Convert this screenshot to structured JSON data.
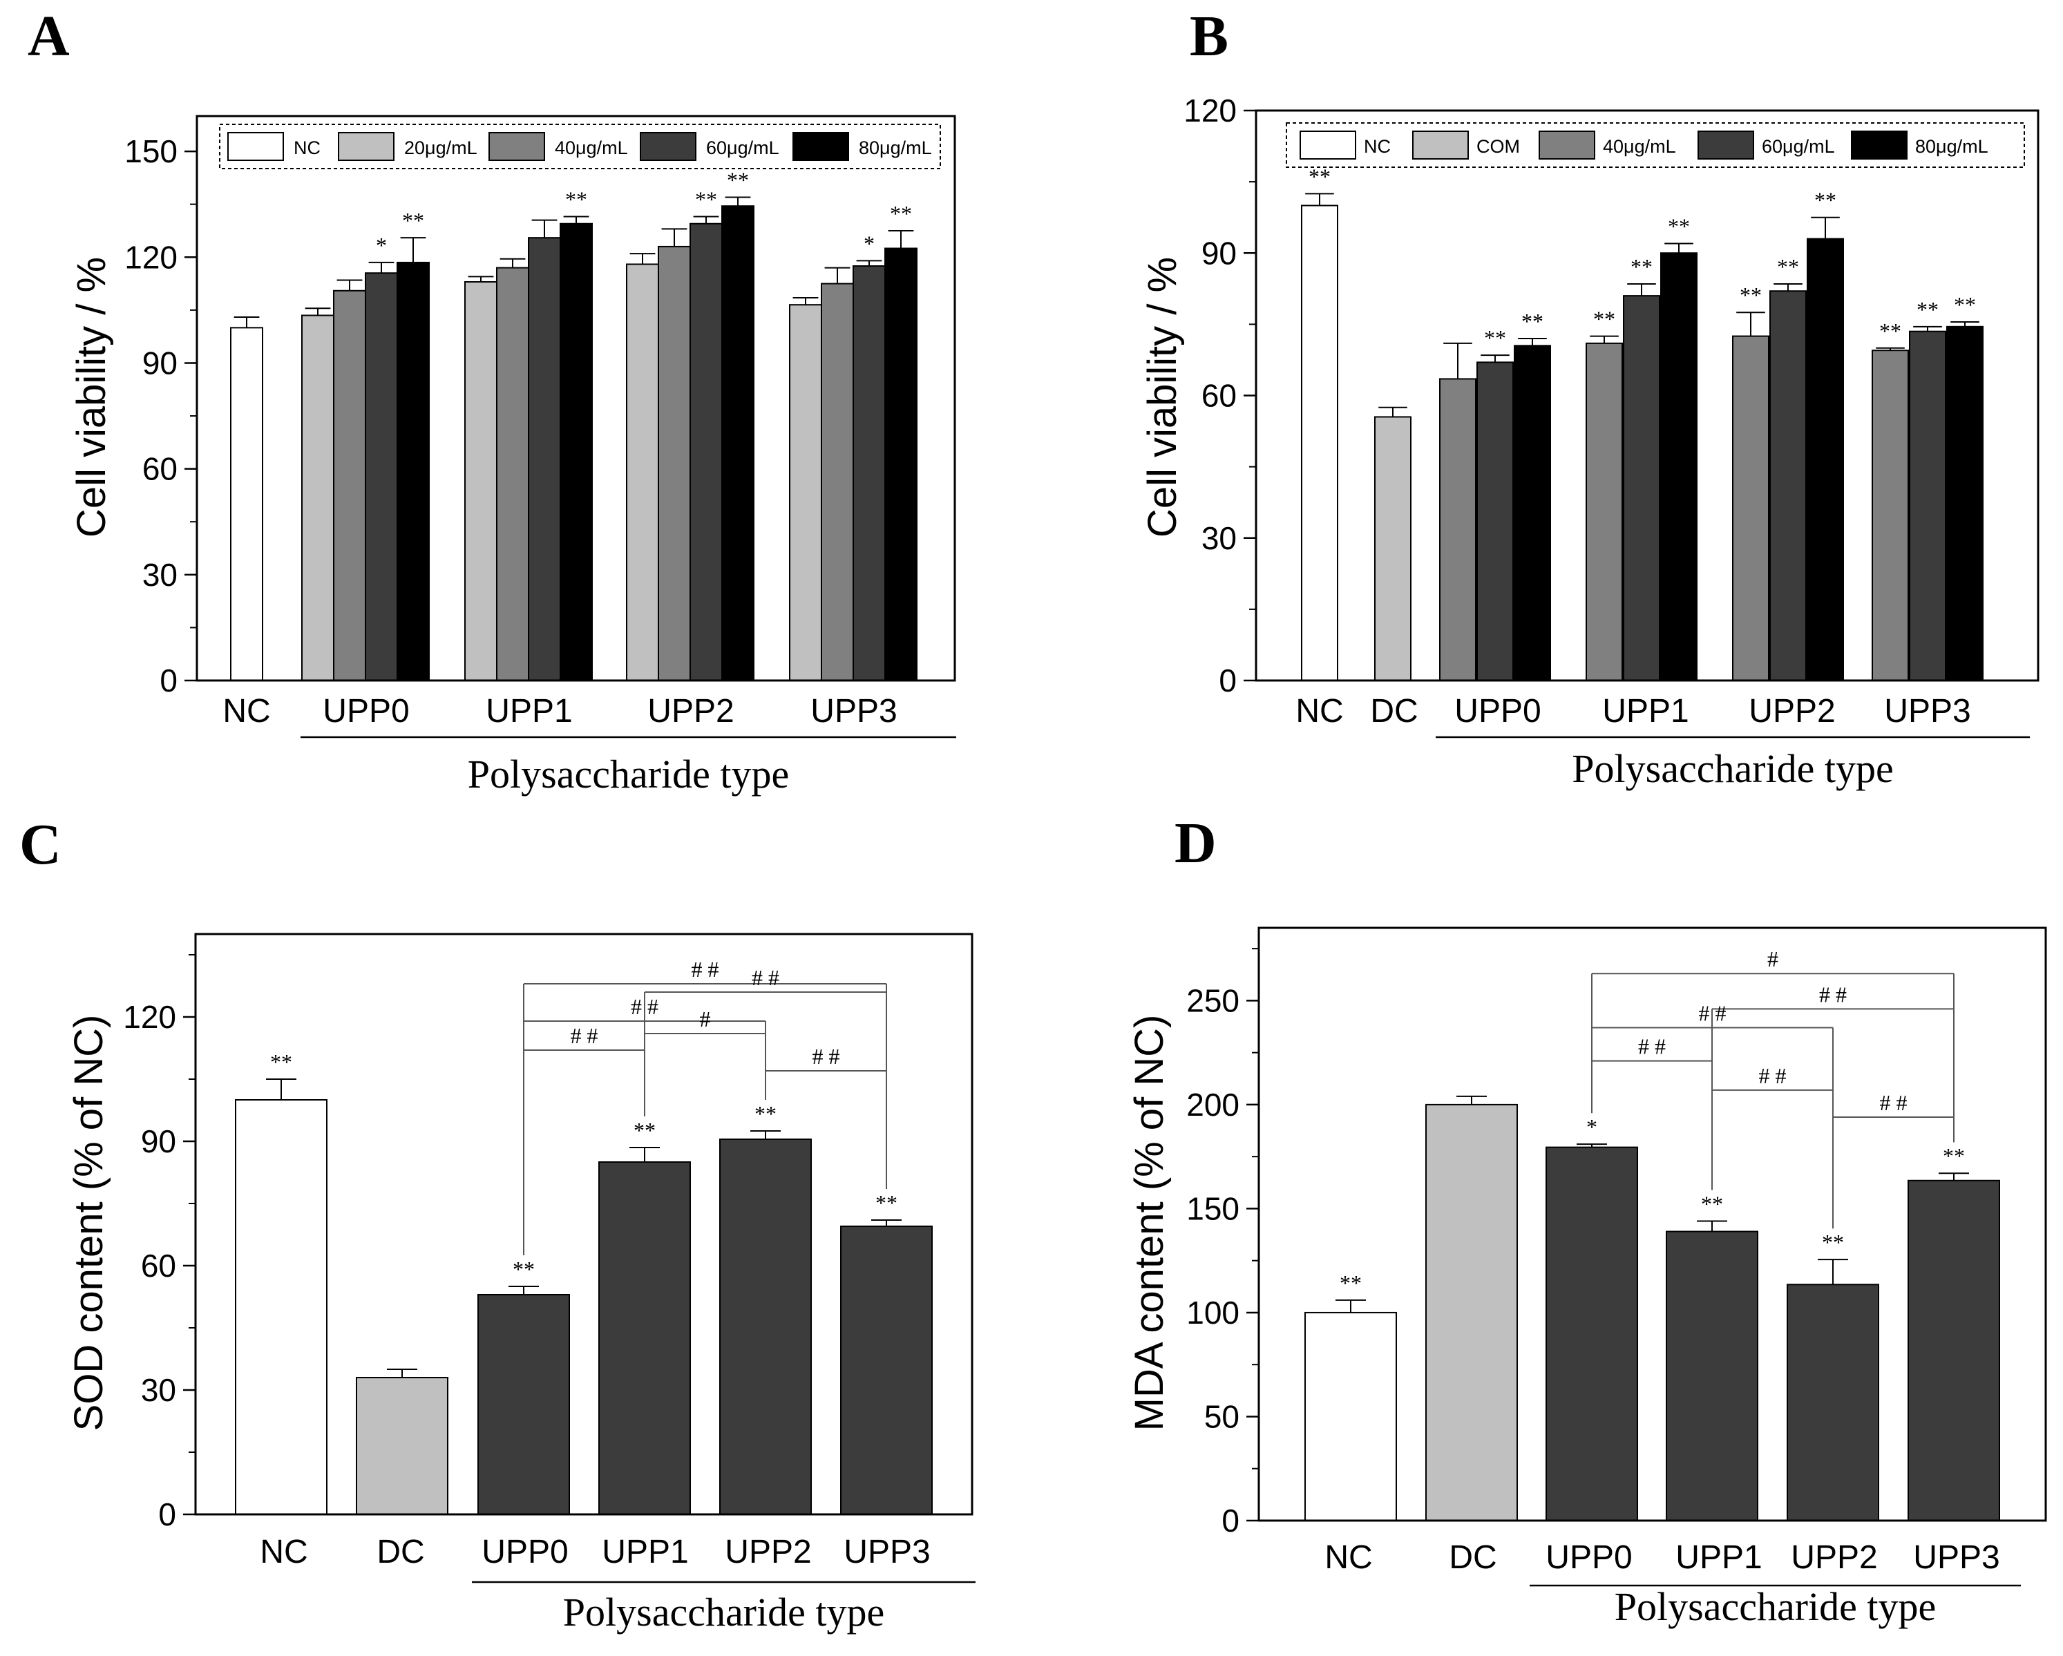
{
  "colors": {
    "white": "#ffffff",
    "light_gray": "#c0c0c0",
    "mid_gray": "#808080",
    "dark_gray": "#3c3c3c",
    "black": "#000000"
  },
  "chart_data": [
    {
      "panel": "A",
      "type": "bar",
      "xlabel": "Polysaccharide type",
      "ylabel": "Cell viability / %",
      "ylim": [
        0,
        160
      ],
      "yticks": [
        0,
        30,
        60,
        90,
        120,
        150
      ],
      "categories": [
        "NC",
        "UPP0",
        "UPP1",
        "UPP2",
        "UPP3"
      ],
      "legend": [
        "NC",
        "20μg/mL",
        "40μg/mL",
        "60μg/mL",
        "80μg/mL"
      ],
      "legend_placement": "top",
      "grid": false,
      "bars": [
        {
          "category": "NC",
          "series": "NC",
          "value": 100,
          "err": 3,
          "sig": ""
        },
        {
          "category": "UPP0",
          "series": "20μg/mL",
          "value": 103.5,
          "err": 2,
          "sig": ""
        },
        {
          "category": "UPP0",
          "series": "40μg/mL",
          "value": 110.5,
          "err": 3,
          "sig": ""
        },
        {
          "category": "UPP0",
          "series": "60μg/mL",
          "value": 115.5,
          "err": 3,
          "sig": "*"
        },
        {
          "category": "UPP0",
          "series": "80μg/mL",
          "value": 118.5,
          "err": 7,
          "sig": "**"
        },
        {
          "category": "UPP1",
          "series": "20μg/mL",
          "value": 113,
          "err": 1.5,
          "sig": ""
        },
        {
          "category": "UPP1",
          "series": "40μg/mL",
          "value": 117,
          "err": 2.5,
          "sig": ""
        },
        {
          "category": "UPP1",
          "series": "60μg/mL",
          "value": 125.5,
          "err": 5,
          "sig": ""
        },
        {
          "category": "UPP1",
          "series": "80μg/mL",
          "value": 129.5,
          "err": 2,
          "sig": "**"
        },
        {
          "category": "UPP2",
          "series": "20μg/mL",
          "value": 118,
          "err": 3,
          "sig": ""
        },
        {
          "category": "UPP2",
          "series": "40μg/mL",
          "value": 123,
          "err": 5,
          "sig": ""
        },
        {
          "category": "UPP2",
          "series": "60μg/mL",
          "value": 129.5,
          "err": 2,
          "sig": "**"
        },
        {
          "category": "UPP2",
          "series": "80μg/mL",
          "value": 134.5,
          "err": 2.5,
          "sig": "**"
        },
        {
          "category": "UPP3",
          "series": "20μg/mL",
          "value": 106.5,
          "err": 2,
          "sig": ""
        },
        {
          "category": "UPP3",
          "series": "40μg/mL",
          "value": 112.5,
          "err": 4.5,
          "sig": ""
        },
        {
          "category": "UPP3",
          "series": "60μg/mL",
          "value": 117.5,
          "err": 1.5,
          "sig": "*"
        },
        {
          "category": "UPP3",
          "series": "80μg/mL",
          "value": 122.5,
          "err": 5,
          "sig": "**"
        }
      ],
      "comparisons": []
    },
    {
      "panel": "B",
      "type": "bar",
      "xlabel": "Polysaccharide type",
      "ylabel": "Cell viability / %",
      "ylim": [
        0,
        120
      ],
      "yticks": [
        0,
        30,
        60,
        90,
        120
      ],
      "categories": [
        "NC",
        "DC",
        "UPP0",
        "UPP1",
        "UPP2",
        "UPP3"
      ],
      "legend": [
        "NC",
        "COM",
        "40μg/mL",
        "60μg/mL",
        "80μg/mL"
      ],
      "legend_placement": "top",
      "grid": false,
      "bars": [
        {
          "category": "NC",
          "series": "NC",
          "value": 100,
          "err": 2.5,
          "sig": "**"
        },
        {
          "category": "DC",
          "series": "COM",
          "value": 55.5,
          "err": 2,
          "sig": ""
        },
        {
          "category": "UPP0",
          "series": "40μg/mL",
          "value": 63.5,
          "err": 7.5,
          "sig": ""
        },
        {
          "category": "UPP0",
          "series": "60μg/mL",
          "value": 67,
          "err": 1.5,
          "sig": "**"
        },
        {
          "category": "UPP0",
          "series": "80μg/mL",
          "value": 70.5,
          "err": 1.5,
          "sig": "**"
        },
        {
          "category": "UPP1",
          "series": "40μg/mL",
          "value": 71,
          "err": 1.5,
          "sig": "**"
        },
        {
          "category": "UPP1",
          "series": "60μg/mL",
          "value": 81,
          "err": 2.5,
          "sig": "**"
        },
        {
          "category": "UPP1",
          "series": "80μg/mL",
          "value": 90,
          "err": 2,
          "sig": "**"
        },
        {
          "category": "UPP2",
          "series": "40μg/mL",
          "value": 72.5,
          "err": 5,
          "sig": "**"
        },
        {
          "category": "UPP2",
          "series": "60μg/mL",
          "value": 82,
          "err": 1.5,
          "sig": "**"
        },
        {
          "category": "UPP2",
          "series": "80μg/mL",
          "value": 93,
          "err": 4.5,
          "sig": "**"
        },
        {
          "category": "UPP3",
          "series": "40μg/mL",
          "value": 69.5,
          "err": 0.5,
          "sig": "**"
        },
        {
          "category": "UPP3",
          "series": "60μg/mL",
          "value": 73.5,
          "err": 1,
          "sig": "**"
        },
        {
          "category": "UPP3",
          "series": "80μg/mL",
          "value": 74.5,
          "err": 1,
          "sig": "**"
        }
      ],
      "comparisons": []
    },
    {
      "panel": "C",
      "type": "bar",
      "xlabel": "Polysaccharide type",
      "ylabel": "SOD content (% of NC)",
      "ylim": [
        0,
        140
      ],
      "yticks": [
        0,
        30,
        60,
        90,
        120
      ],
      "categories": [
        "NC",
        "DC",
        "UPP0",
        "UPP1",
        "UPP2",
        "UPP3"
      ],
      "grid": false,
      "bars": [
        {
          "category": "NC",
          "series": "NC",
          "value": 100,
          "err": 5,
          "sig": "**"
        },
        {
          "category": "DC",
          "series": "DC",
          "value": 33,
          "err": 2,
          "sig": ""
        },
        {
          "category": "UPP0",
          "series": "UPP",
          "value": 53,
          "err": 2,
          "sig": "**"
        },
        {
          "category": "UPP1",
          "series": "UPP",
          "value": 85,
          "err": 3.5,
          "sig": "**"
        },
        {
          "category": "UPP2",
          "series": "UPP",
          "value": 90.5,
          "err": 2,
          "sig": "**"
        },
        {
          "category": "UPP3",
          "series": "UPP",
          "value": 69.5,
          "err": 1.5,
          "sig": "**"
        }
      ],
      "comparisons": [
        {
          "from": "UPP0",
          "to": "UPP3",
          "label": "# #",
          "y": 128
        },
        {
          "from": "UPP1",
          "to": "UPP3",
          "label": "# #",
          "y": 126
        },
        {
          "from": "UPP0",
          "to": "UPP2",
          "label": "# #",
          "y": 119
        },
        {
          "from": "UPP0",
          "to": "UPP1",
          "label": "# #",
          "y": 112
        },
        {
          "from": "UPP1",
          "to": "UPP2",
          "label": "#",
          "y": 116
        },
        {
          "from": "UPP2",
          "to": "UPP3",
          "label": "# #",
          "y": 107
        }
      ]
    },
    {
      "panel": "D",
      "type": "bar",
      "xlabel": "Polysaccharide type",
      "ylabel": "MDA content (% of NC)",
      "ylim": [
        0,
        285
      ],
      "yticks": [
        0,
        50,
        100,
        150,
        200,
        250
      ],
      "categories": [
        "NC",
        "DC",
        "UPP0",
        "UPP1",
        "UPP2",
        "UPP3"
      ],
      "grid": false,
      "bars": [
        {
          "category": "NC",
          "series": "NC",
          "value": 100,
          "err": 6,
          "sig": "**"
        },
        {
          "category": "DC",
          "series": "DC",
          "value": 200,
          "err": 4,
          "sig": ""
        },
        {
          "category": "UPP0",
          "series": "UPP",
          "value": 179.5,
          "err": 1.5,
          "sig": "*"
        },
        {
          "category": "UPP1",
          "series": "UPP",
          "value": 139,
          "err": 5,
          "sig": "**"
        },
        {
          "category": "UPP2",
          "series": "UPP",
          "value": 113.5,
          "err": 12,
          "sig": "**"
        },
        {
          "category": "UPP3",
          "series": "UPP",
          "value": 163.5,
          "err": 3.5,
          "sig": "**"
        }
      ],
      "comparisons": [
        {
          "from": "UPP0",
          "to": "UPP3",
          "label": "#",
          "y": 263
        },
        {
          "from": "UPP1",
          "to": "UPP3",
          "label": "# #",
          "y": 246
        },
        {
          "from": "UPP0",
          "to": "UPP2",
          "label": "# #",
          "y": 237
        },
        {
          "from": "UPP0",
          "to": "UPP1",
          "label": "# #",
          "y": 221
        },
        {
          "from": "UPP1",
          "to": "UPP2",
          "label": "# #",
          "y": 207
        },
        {
          "from": "UPP2",
          "to": "UPP3",
          "label": "# #",
          "y": 194
        }
      ]
    }
  ]
}
